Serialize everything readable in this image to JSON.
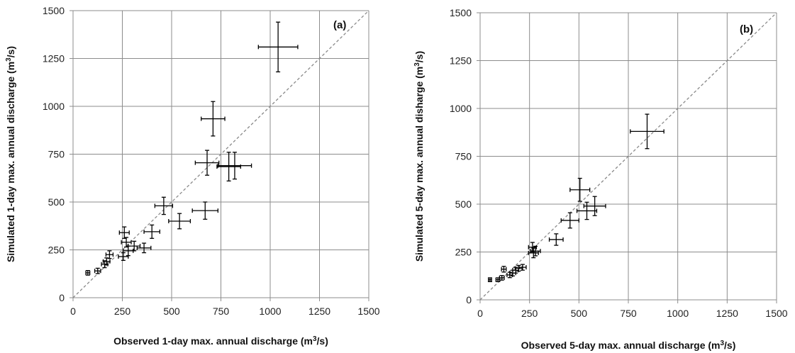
{
  "chart_data": [
    {
      "type": "scatter",
      "panel_label": "(a)",
      "xlabel": "Observed 1-day max. annual discharge (m³/s)",
      "ylabel": "Simulated 1-day max. annual discharge (m³/s)",
      "xlim": [
        0,
        1500
      ],
      "ylim": [
        0,
        1500
      ],
      "xticks": [
        "0",
        "250",
        "500",
        "750",
        "1000",
        "1250",
        "1500"
      ],
      "yticks": [
        "0",
        "250",
        "500",
        "750",
        "1000",
        "1250",
        "1500"
      ],
      "grid": true,
      "reference_line": "1:1 dashed",
      "points": [
        {
          "x": 1040,
          "y": 1310,
          "xerr": 100,
          "yerr": 130
        },
        {
          "x": 710,
          "y": 935,
          "xerr": 60,
          "yerr": 90
        },
        {
          "x": 680,
          "y": 705,
          "xerr": 60,
          "yerr": 65
        },
        {
          "x": 790,
          "y": 685,
          "xerr": 60,
          "yerr": 75
        },
        {
          "x": 820,
          "y": 690,
          "xerr": 85,
          "yerr": 70
        },
        {
          "x": 460,
          "y": 480,
          "xerr": 45,
          "yerr": 45
        },
        {
          "x": 670,
          "y": 455,
          "xerr": 65,
          "yerr": 45
        },
        {
          "x": 540,
          "y": 400,
          "xerr": 55,
          "yerr": 40
        },
        {
          "x": 400,
          "y": 345,
          "xerr": 40,
          "yerr": 35
        },
        {
          "x": 260,
          "y": 340,
          "xerr": 25,
          "yerr": 30
        },
        {
          "x": 270,
          "y": 290,
          "xerr": 25,
          "yerr": 25
        },
        {
          "x": 310,
          "y": 270,
          "xerr": 30,
          "yerr": 25
        },
        {
          "x": 360,
          "y": 260,
          "xerr": 35,
          "yerr": 25
        },
        {
          "x": 280,
          "y": 245,
          "xerr": 25,
          "yerr": 25
        },
        {
          "x": 255,
          "y": 215,
          "xerr": 25,
          "yerr": 20
        },
        {
          "x": 185,
          "y": 225,
          "xerr": 18,
          "yerr": 20
        },
        {
          "x": 170,
          "y": 190,
          "xerr": 17,
          "yerr": 18
        },
        {
          "x": 160,
          "y": 175,
          "xerr": 16,
          "yerr": 18
        },
        {
          "x": 125,
          "y": 140,
          "xerr": 15,
          "yerr": 14
        },
        {
          "x": 75,
          "y": 130,
          "xerr": 10,
          "yerr": 12
        }
      ]
    },
    {
      "type": "scatter",
      "panel_label": "(b)",
      "xlabel": "Observed 5-day max. annual discharge (m³/s)",
      "ylabel": "Simulated 5-day max. annual disharge (m³/s)",
      "xlim": [
        0,
        1500
      ],
      "ylim": [
        0,
        1500
      ],
      "xticks": [
        "0",
        "250",
        "500",
        "750",
        "1000",
        "1250",
        "1500"
      ],
      "yticks": [
        "0",
        "250",
        "500",
        "750",
        "1000",
        "1250",
        "1500"
      ],
      "grid": true,
      "reference_line": "1:1 dashed",
      "points": [
        {
          "x": 845,
          "y": 880,
          "xerr": 85,
          "yerr": 90
        },
        {
          "x": 505,
          "y": 575,
          "xerr": 50,
          "yerr": 60
        },
        {
          "x": 580,
          "y": 490,
          "xerr": 55,
          "yerr": 50
        },
        {
          "x": 540,
          "y": 465,
          "xerr": 50,
          "yerr": 45
        },
        {
          "x": 455,
          "y": 415,
          "xerr": 45,
          "yerr": 40
        },
        {
          "x": 385,
          "y": 315,
          "xerr": 35,
          "yerr": 30
        },
        {
          "x": 265,
          "y": 275,
          "xerr": 20,
          "yerr": 25
        },
        {
          "x": 280,
          "y": 255,
          "xerr": 25,
          "yerr": 25
        },
        {
          "x": 270,
          "y": 245,
          "xerr": 25,
          "yerr": 25
        },
        {
          "x": 215,
          "y": 170,
          "xerr": 18,
          "yerr": 15
        },
        {
          "x": 195,
          "y": 165,
          "xerr": 18,
          "yerr": 15
        },
        {
          "x": 180,
          "y": 155,
          "xerr": 15,
          "yerr": 15
        },
        {
          "x": 165,
          "y": 140,
          "xerr": 15,
          "yerr": 15
        },
        {
          "x": 150,
          "y": 130,
          "xerr": 14,
          "yerr": 14
        },
        {
          "x": 120,
          "y": 160,
          "xerr": 12,
          "yerr": 15
        },
        {
          "x": 110,
          "y": 115,
          "xerr": 12,
          "yerr": 12
        },
        {
          "x": 90,
          "y": 105,
          "xerr": 10,
          "yerr": 10
        },
        {
          "x": 50,
          "y": 105,
          "xerr": 8,
          "yerr": 10
        }
      ]
    }
  ]
}
